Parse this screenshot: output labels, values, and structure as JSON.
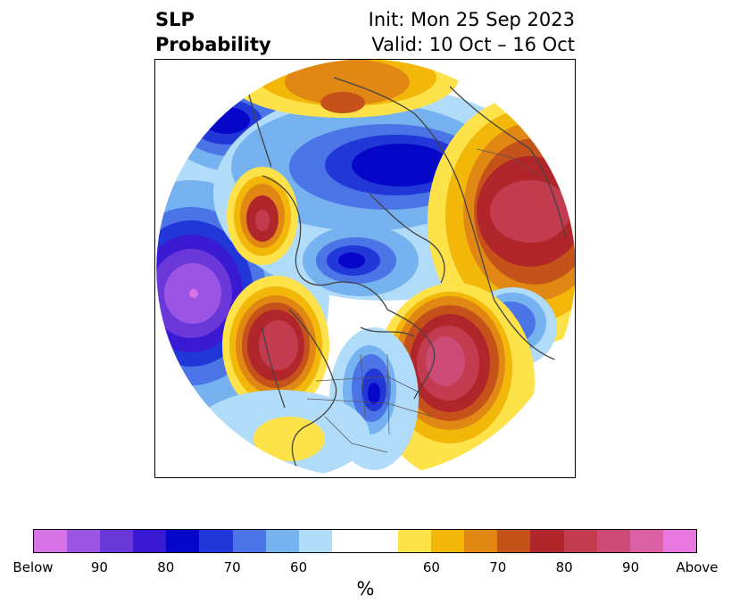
{
  "title": {
    "variable": "SLP",
    "product": "Probability",
    "init": "Init: Mon 25 Sep 2023",
    "valid": "Valid: 10 Oct – 16 Oct"
  },
  "map": {
    "projection": "north-polar-stereographic",
    "features": [
      {
        "name": "north-pacific-below-center",
        "category": "below",
        "peak_percent": 90
      },
      {
        "name": "alaska-above-center",
        "category": "above",
        "peak_percent": 80
      },
      {
        "name": "canada-west-coast-above-center",
        "category": "above",
        "peak_percent": 90
      },
      {
        "name": "great-lakes-below-center",
        "category": "below",
        "peak_percent": 80
      },
      {
        "name": "north-atlantic-above-center",
        "category": "above",
        "peak_percent": 90
      },
      {
        "name": "east-atlantic-below-center",
        "category": "below",
        "peak_percent": 80
      },
      {
        "name": "arctic-below-center",
        "category": "below",
        "peak_percent": 80
      },
      {
        "name": "siberia-north-below-center",
        "category": "below",
        "peak_percent": 80
      },
      {
        "name": "east-siberia-above-center",
        "category": "above",
        "peak_percent": 80
      },
      {
        "name": "europe-russia-above-center",
        "category": "above",
        "peak_percent": 80
      },
      {
        "name": "west-pacific-below-center",
        "category": "below",
        "peak_percent": 80
      }
    ]
  },
  "colorbar": {
    "colors": [
      "#d873e7",
      "#9c55e3",
      "#6a38d9",
      "#3a19d3",
      "#0606c9",
      "#2237d8",
      "#4b74e6",
      "#76b1f0",
      "#b1dcf9",
      "#ffffff",
      "#ffffff",
      "#fde24a",
      "#f2b708",
      "#e18713",
      "#c5521a",
      "#b1262b",
      "#c23b4f",
      "#cb4a76",
      "#dc60a4",
      "#e877df"
    ],
    "tick_labels": [
      "Below",
      "90",
      "80",
      "70",
      "60",
      "60",
      "70",
      "80",
      "90",
      "Above"
    ],
    "unit": "%"
  }
}
